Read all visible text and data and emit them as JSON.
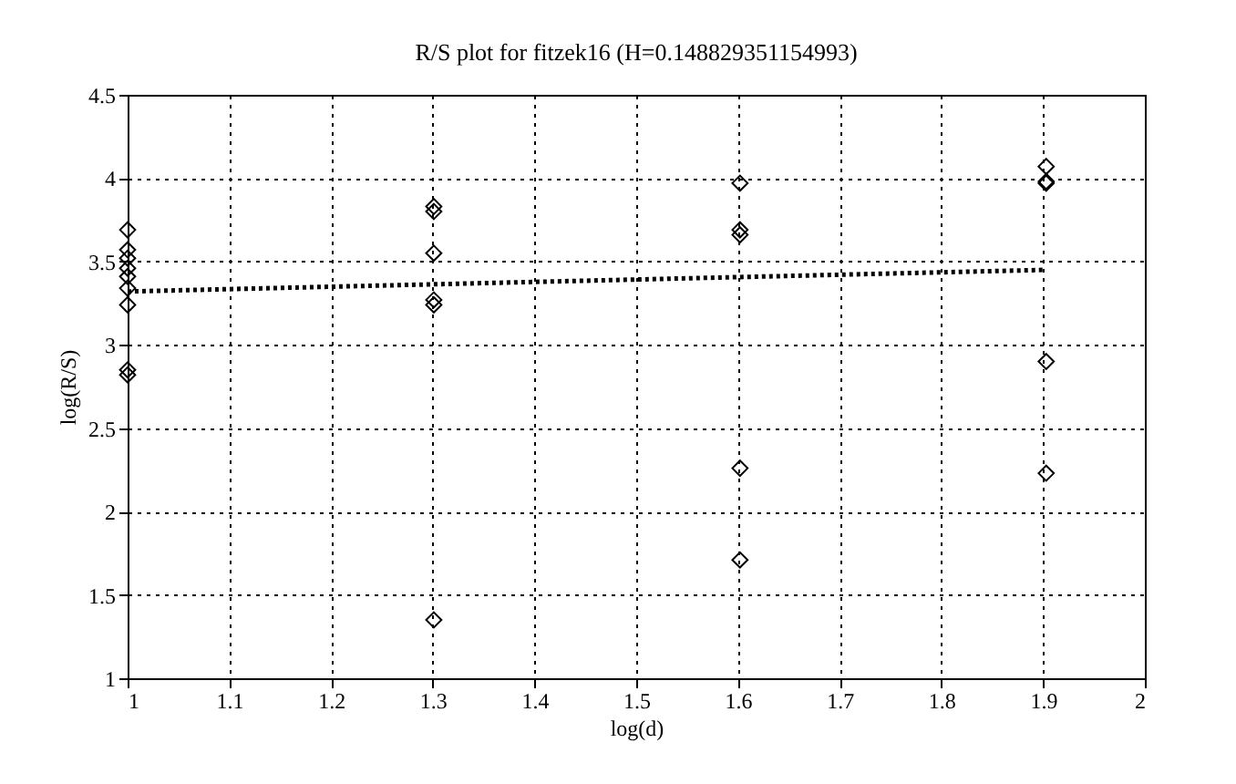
{
  "chart_data": {
    "type": "scatter",
    "title": "R/S plot for fitzek16 (H=0.148829351154993)",
    "xlabel": "log(d)",
    "ylabel": "log(R/S)",
    "xlim": [
      1,
      2
    ],
    "xticks": [
      1,
      1.1,
      1.2,
      1.3,
      1.4,
      1.5,
      1.6,
      1.7,
      1.8,
      1.9,
      2
    ],
    "ylim": [
      1,
      4.5
    ],
    "yticks": [
      1,
      1.5,
      2,
      2.5,
      3,
      3.5,
      4,
      4.5
    ],
    "grid": true,
    "marker": "diamond",
    "series": [
      {
        "color": "#000000",
        "x": [
          1,
          1,
          1,
          1,
          1,
          1,
          1,
          1,
          1,
          1.301,
          1.301,
          1.301,
          1.301,
          1.301,
          1.301,
          1.602,
          1.602,
          1.602,
          1.602,
          1.602,
          1.903,
          1.903,
          1.903,
          1.903,
          1.903
        ],
        "values": [
          3.69,
          3.57,
          3.52,
          3.46,
          3.41,
          3.34,
          3.24,
          2.85,
          2.82,
          3.83,
          3.8,
          3.55,
          3.27,
          3.24,
          1.35,
          3.97,
          3.69,
          3.66,
          2.26,
          1.71,
          4.07,
          3.98,
          3.97,
          2.9,
          2.23
        ]
      },
      {
        "type": "line",
        "color": "#000000",
        "marker": "none",
        "line_style": "dotted",
        "x": [
          1,
          1.903
        ],
        "values": [
          3.32,
          3.45
        ]
      }
    ]
  }
}
